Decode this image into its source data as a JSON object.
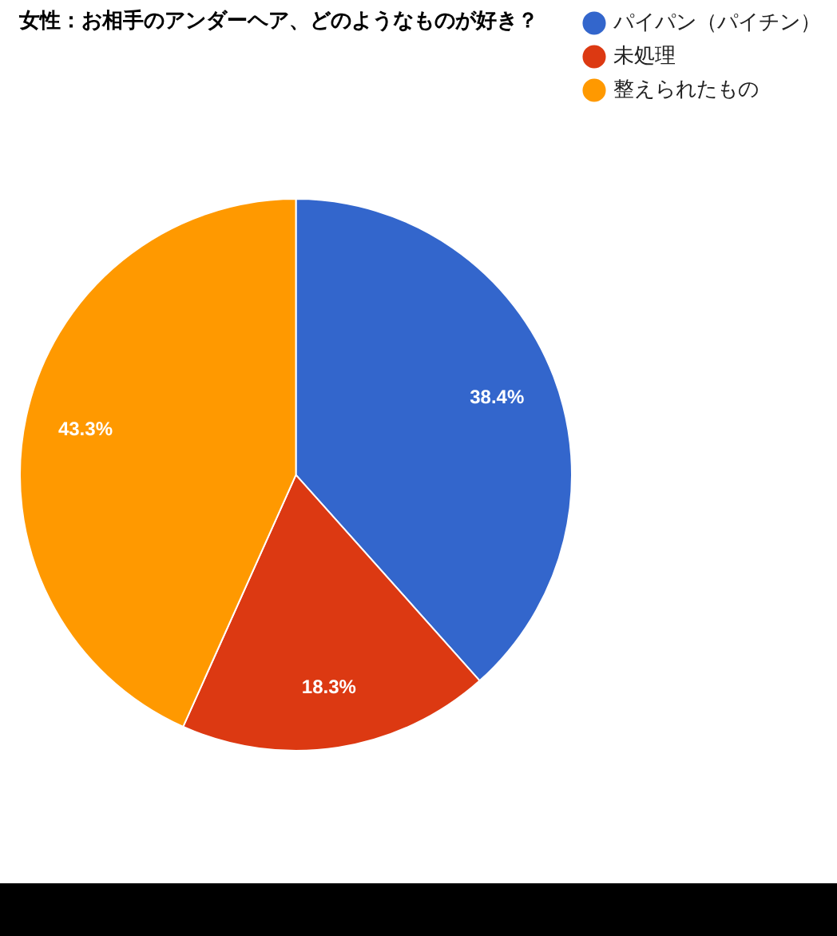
{
  "chart_data": {
    "type": "pie",
    "title": "女性：お相手のアンダーヘア、どのようなものが好き？",
    "categories": [
      "パイパン（パイチン）",
      "未処理",
      "整えられたもの"
    ],
    "values": [
      38.4,
      18.3,
      43.3
    ],
    "colors": [
      "#3366cc",
      "#dc3912",
      "#ff9900"
    ],
    "value_labels": [
      "38.4%",
      "18.3%",
      "43.3%"
    ],
    "legend": "top right"
  }
}
